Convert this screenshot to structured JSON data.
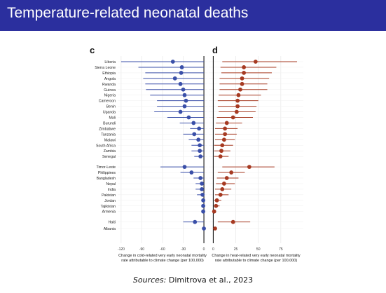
{
  "slide": {
    "title": "Temperature-related neonatal deaths",
    "source_label": "Sources:",
    "source_text": "Dimitrova et al., 2023"
  },
  "chart_data": [
    {
      "panel": "c",
      "type": "scatter",
      "subtype": "forest-plot",
      "xlabel_line1": "Change in cold-related very early neonatal mortality",
      "xlabel_line2": "rate attributable to climate change (per 100,000)",
      "xlim": [
        -125,
        5
      ],
      "xticks": [
        -120,
        -90,
        -60,
        -30,
        0
      ],
      "grid": true,
      "color": "#3a4fa8",
      "groups": [
        {
          "countries": [
            "Liberia",
            "Sierra Leone",
            "Ethiopia",
            "Angola",
            "Rwanda",
            "Guinea",
            "Nigeria",
            "Cameroon",
            "Benin",
            "Uganda",
            "Mali",
            "Burundi",
            "Zimbabwe",
            "Tanzania",
            "Malawi",
            "South Africa",
            "Zambia",
            "Senegal"
          ],
          "estimate": [
            -45,
            -32,
            -33,
            -42,
            -34,
            -30,
            -28,
            -26,
            -28,
            -34,
            -22,
            -15,
            -7,
            -14,
            -8,
            -6,
            -6,
            -5
          ],
          "lower": [
            -120,
            -95,
            -85,
            -88,
            -85,
            -84,
            -78,
            -68,
            -68,
            -72,
            -53,
            -35,
            -20,
            -30,
            -22,
            -18,
            -18,
            -14
          ],
          "upper": [
            0,
            0,
            0,
            0,
            0,
            0,
            0,
            0,
            0,
            0,
            0,
            0,
            0,
            0,
            0,
            0,
            0,
            0
          ]
        },
        {
          "countries": [
            "Timor-Leste",
            "Philippines",
            "Bangladesh",
            "Nepal",
            "India",
            "Pakistan",
            "Jordan",
            "Tajikistan",
            "Armenia"
          ],
          "estimate": [
            -28,
            -18,
            -5,
            -3,
            -3,
            -2,
            -1,
            -1,
            -1
          ],
          "lower": [
            -63,
            -34,
            -15,
            -12,
            -12,
            -10,
            -3,
            -3,
            -2
          ],
          "upper": [
            0,
            0,
            0,
            0,
            0,
            0,
            0,
            0,
            0
          ]
        },
        {
          "countries": [
            "Haiti"
          ],
          "estimate": [
            -13
          ],
          "lower": [
            -30
          ],
          "upper": [
            0
          ]
        },
        {
          "countries": [
            "Albania"
          ],
          "estimate": [
            0
          ],
          "lower": [
            -1
          ],
          "upper": [
            1
          ]
        }
      ]
    },
    {
      "panel": "d",
      "type": "scatter",
      "subtype": "forest-plot",
      "xlabel_line1": "Change in heat-related very early neonatal mortality",
      "xlabel_line2": "rate attributable to climate change (per 100,000)",
      "xlim": [
        -5,
        100
      ],
      "xticks": [
        0,
        25,
        50,
        75
      ],
      "grid": true,
      "color": "#a63a22",
      "groups": [
        {
          "countries": [
            "Liberia",
            "Sierra Leone",
            "Ethiopia",
            "Angola",
            "Rwanda",
            "Guinea",
            "Nigeria",
            "Cameroon",
            "Benin",
            "Uganda",
            "Mali",
            "Burundi",
            "Zimbabwe",
            "Tanzania",
            "Malawi",
            "South Africa",
            "Zambia",
            "Senegal"
          ],
          "estimate": [
            47,
            34,
            34,
            32,
            32,
            30,
            28,
            27,
            27,
            26,
            22,
            15,
            13,
            13,
            12,
            10,
            9,
            8
          ],
          "lower": [
            10,
            8,
            9,
            7,
            7,
            7,
            6,
            5,
            5,
            6,
            4,
            3,
            2,
            2,
            2,
            1,
            1,
            1
          ],
          "upper": [
            93,
            70,
            65,
            62,
            60,
            60,
            53,
            50,
            48,
            47,
            44,
            32,
            27,
            26,
            24,
            22,
            19,
            17
          ]
        },
        {
          "countries": [
            "Timor-Leste",
            "Philippines",
            "Bangladesh",
            "Nepal",
            "India",
            "Pakistan",
            "Jordan",
            "Tajikistan",
            "Armenia"
          ],
          "estimate": [
            40,
            20,
            15,
            12,
            10,
            8,
            4,
            3,
            1
          ],
          "lower": [
            10,
            5,
            4,
            3,
            2,
            2,
            1,
            1,
            0
          ],
          "upper": [
            68,
            35,
            28,
            24,
            20,
            17,
            9,
            7,
            3
          ]
        },
        {
          "countries": [
            "Haiti"
          ],
          "estimate": [
            22
          ],
          "lower": [
            5
          ],
          "upper": [
            41
          ]
        },
        {
          "countries": [
            "Albania"
          ],
          "estimate": [
            2
          ],
          "lower": [
            0
          ],
          "upper": [
            4
          ]
        }
      ]
    }
  ]
}
